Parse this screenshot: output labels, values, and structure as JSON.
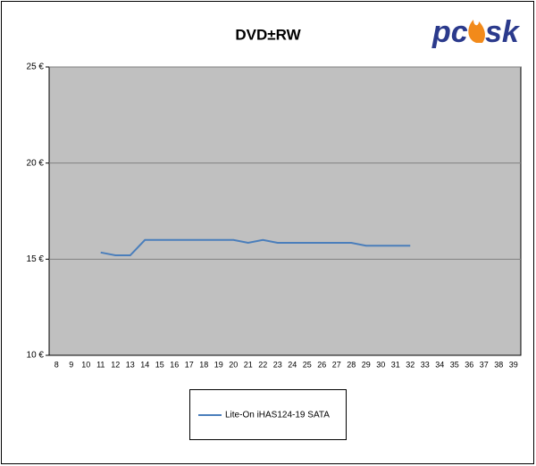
{
  "chart_data": {
    "type": "line",
    "title": "DVD±RW",
    "logo": [
      "pc",
      "sk"
    ],
    "categories": [
      8,
      9,
      10,
      11,
      12,
      13,
      14,
      15,
      16,
      17,
      18,
      19,
      20,
      21,
      22,
      23,
      24,
      25,
      26,
      27,
      28,
      29,
      30,
      31,
      32,
      33,
      34,
      35,
      36,
      37,
      38,
      39
    ],
    "series": [
      {
        "name": "Lite-On iHAS124-19 SATA",
        "color": "#4a7ebb",
        "values": [
          null,
          null,
          null,
          15.35,
          15.2,
          15.2,
          16,
          16,
          16,
          16,
          16,
          16,
          16,
          15.85,
          16,
          15.85,
          15.85,
          15.85,
          15.85,
          15.85,
          15.85,
          15.7,
          15.7,
          15.7,
          15.7,
          null,
          null,
          null,
          null,
          null,
          null,
          null
        ]
      }
    ],
    "ylim": [
      10,
      25
    ],
    "yticks": [
      {
        "value": 10,
        "label": "10 €"
      },
      {
        "value": 15,
        "label": "15 €"
      },
      {
        "value": 20,
        "label": "20 €"
      },
      {
        "value": 25,
        "label": "25 €"
      }
    ],
    "grid": true,
    "plot_color": "#c0c0c0"
  }
}
